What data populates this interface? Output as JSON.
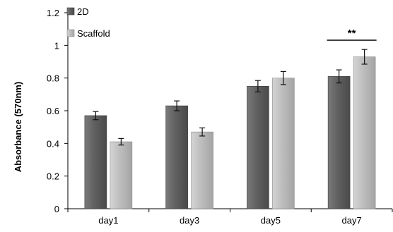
{
  "chart_data": {
    "type": "bar",
    "ylabel": "Absorbance (570nm)",
    "categories": [
      "day1",
      "day3",
      "day5",
      "day7"
    ],
    "ylim": [
      0,
      1.2
    ],
    "yticks": [
      {
        "value": 0,
        "label": "0"
      },
      {
        "value": 0.2,
        "label": "0.2"
      },
      {
        "value": 0.4,
        "label": "0.4"
      },
      {
        "value": 0.6,
        "label": "0.6"
      },
      {
        "value": 0.8,
        "label": "0.8"
      },
      {
        "value": 1.0,
        "label": "1"
      },
      {
        "value": 1.2,
        "label": "1.2"
      }
    ],
    "grid": false,
    "legend_position": "top-left",
    "series": [
      {
        "name": "2D",
        "values": [
          0.57,
          0.63,
          0.75,
          0.81
        ],
        "errors": [
          0.025,
          0.03,
          0.035,
          0.04
        ],
        "color": "#5f5f5f"
      },
      {
        "name": "Scaffold",
        "values": [
          0.41,
          0.47,
          0.8,
          0.93
        ],
        "errors": [
          0.02,
          0.025,
          0.04,
          0.045
        ],
        "color": "#b9b9b9"
      }
    ],
    "annotations": [
      {
        "text": "**",
        "category": "day7"
      }
    ]
  }
}
